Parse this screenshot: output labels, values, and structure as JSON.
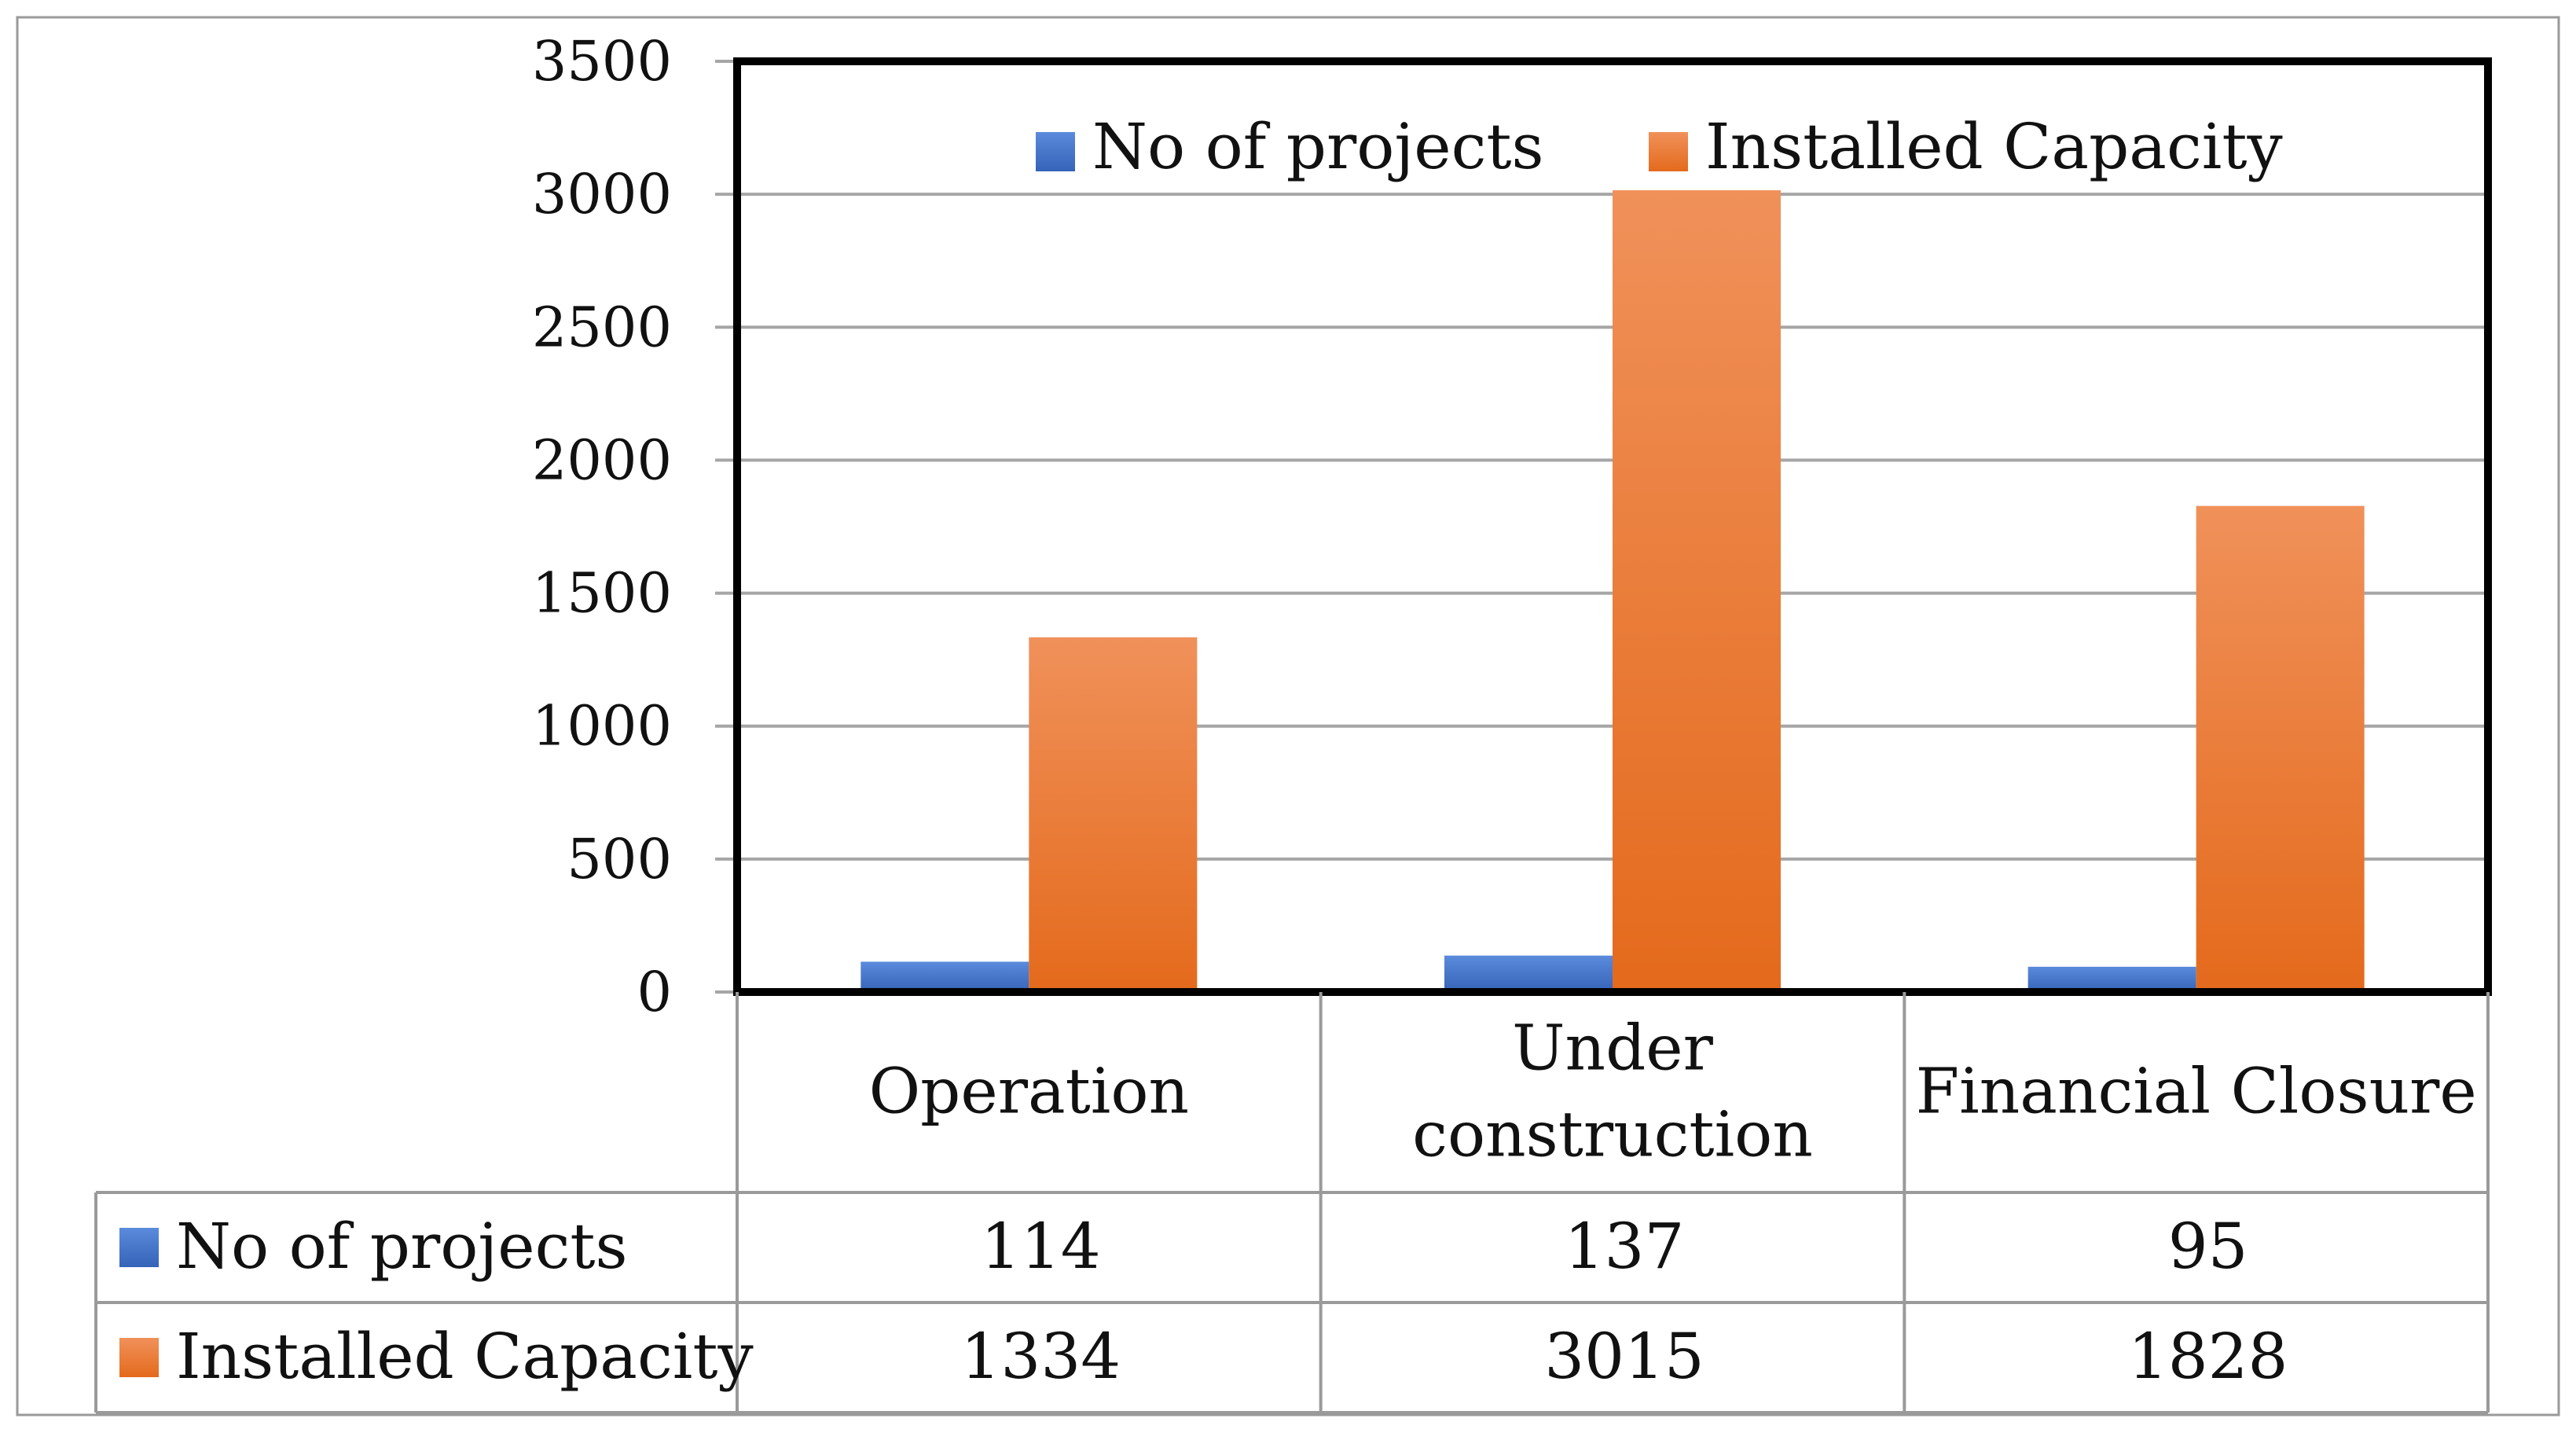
{
  "chart_data": {
    "type": "bar",
    "title": "",
    "xlabel": "",
    "ylabel": "",
    "categories": [
      {
        "lines": [
          "Operation"
        ]
      },
      {
        "lines": [
          "Under",
          "construction"
        ]
      },
      {
        "lines": [
          "Financial Closure"
        ]
      }
    ],
    "series": [
      {
        "name": "No of projects",
        "values": [
          114,
          137,
          95
        ],
        "color": "#4472C4",
        "color_light": "#5b8bdc",
        "color_dark": "#3563b8"
      },
      {
        "name": "Installed Capacity",
        "values": [
          1334,
          3015,
          1828
        ],
        "color": "#ED7D31",
        "color_light": "#f0915a",
        "color_dark": "#e46a1c"
      }
    ],
    "y_ticks": [
      "0",
      "500",
      "1000",
      "1500",
      "2000",
      "2500",
      "3000",
      "3500"
    ],
    "ylim": [
      0,
      3500
    ],
    "grid": true,
    "legend_position": "top",
    "data_table": {
      "rows": [
        {
          "label": "No of projects",
          "values": [
            "114",
            "137",
            "95"
          ]
        },
        {
          "label": "Installed Capacity",
          "values": [
            "1334",
            "3015",
            "1828"
          ]
        }
      ]
    }
  }
}
